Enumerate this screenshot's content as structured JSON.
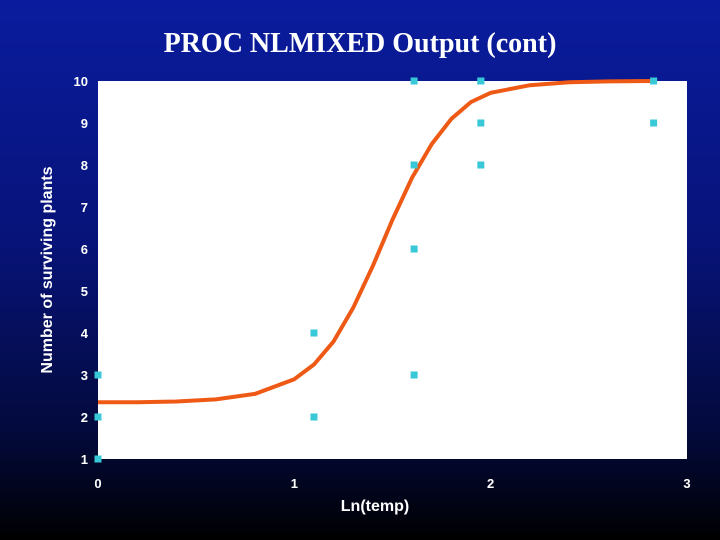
{
  "slide": {
    "title": "PROC NLMIXED Output (cont)"
  },
  "chart_data": {
    "type": "scatter",
    "title": "",
    "xlabel": "Ln(temp)",
    "ylabel": "Number of surviving plants",
    "xlim": [
      0,
      3
    ],
    "ylim": [
      1,
      10
    ],
    "x_ticks": [
      "0",
      "1",
      "2",
      "3"
    ],
    "y_ticks": [
      "1",
      "2",
      "3",
      "4",
      "5",
      "6",
      "7",
      "8",
      "9",
      "10"
    ],
    "grid": false,
    "legend": "none",
    "colors": {
      "points": "#39c8d8",
      "curve": "#ee5a16",
      "plot_background": "#ffffff"
    },
    "series": [
      {
        "type": "scatter",
        "x": [
          0.0,
          0.0,
          0.0,
          1.1,
          1.1,
          1.61,
          1.61,
          1.61,
          1.61,
          1.95,
          1.95,
          1.95,
          1.95,
          2.83,
          2.83
        ],
        "y": [
          1,
          2,
          3,
          2,
          4,
          3,
          6,
          8,
          10,
          8,
          9,
          10,
          10,
          9,
          10
        ]
      },
      {
        "type": "line",
        "x": [
          0.0,
          0.2,
          0.4,
          0.6,
          0.8,
          1.0,
          1.1,
          1.2,
          1.3,
          1.4,
          1.5,
          1.6,
          1.7,
          1.8,
          1.9,
          2.0,
          2.2,
          2.4,
          2.6,
          2.83
        ],
        "y": [
          2.35,
          2.35,
          2.37,
          2.42,
          2.55,
          2.9,
          3.25,
          3.8,
          4.6,
          5.6,
          6.7,
          7.7,
          8.5,
          9.1,
          9.5,
          9.72,
          9.9,
          9.97,
          9.99,
          10.0
        ]
      }
    ]
  }
}
